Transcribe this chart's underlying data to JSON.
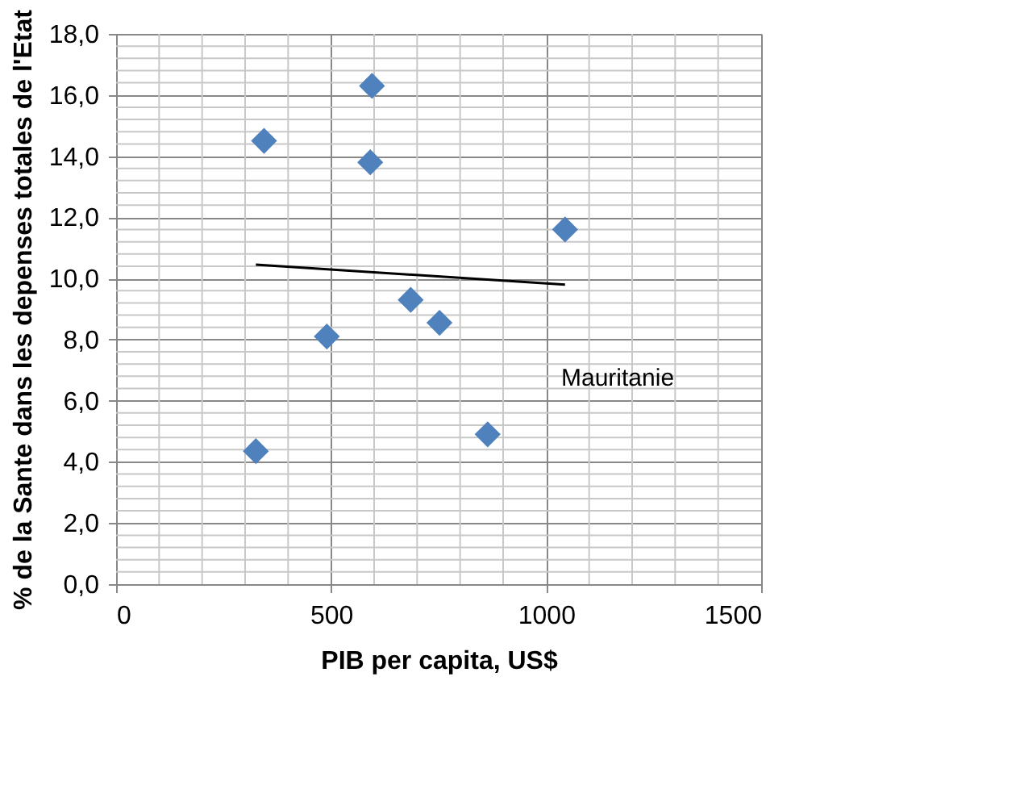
{
  "chart_data": {
    "type": "scatter",
    "xlabel": "PIB per capita, US$",
    "ylabel": "% de la Sante dans les depenses totales de l'Etat",
    "xlim": [
      0,
      1500
    ],
    "xticks": [
      0,
      500,
      1000,
      1500
    ],
    "ylim": [
      0,
      18
    ],
    "yticks": [
      {
        "value": 0,
        "label": "0,0"
      },
      {
        "value": 2,
        "label": "2,0"
      },
      {
        "value": 4,
        "label": "4,0"
      },
      {
        "value": 6,
        "label": "6,0"
      },
      {
        "value": 8,
        "label": "8,0"
      },
      {
        "value": 10,
        "label": "10,0"
      },
      {
        "value": 12,
        "label": "12,0"
      },
      {
        "value": 14,
        "label": "14,0"
      },
      {
        "value": 16,
        "label": "16,0"
      },
      {
        "value": 18,
        "label": "18,0"
      }
    ],
    "grid": true,
    "marker": "diamond",
    "annotations": [
      "Mauritanie"
    ],
    "series": [
      {
        "color": "#4f81bd",
        "x": [
          325,
          344,
          595,
          591,
          490,
          685,
          752,
          864,
          1044
        ],
        "values": [
          4.35,
          14.5,
          16.3,
          13.8,
          8.1,
          9.3,
          8.55,
          4.9,
          11.6
        ]
      },
      {
        "type": "line",
        "marker": "none",
        "line_style": "solid",
        "color": "#000000",
        "x": [
          325,
          1044
        ],
        "values": [
          10.45,
          9.8
        ]
      }
    ]
  }
}
